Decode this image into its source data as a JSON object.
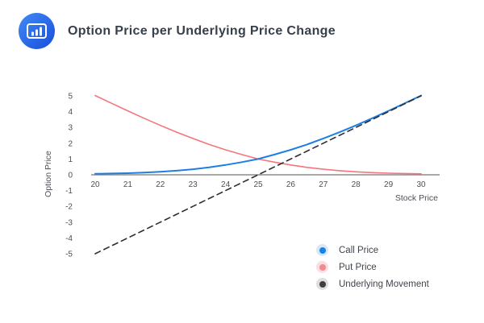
{
  "header": {
    "title": "Option Price per Underlying Price Change",
    "logo_icon": "bar-chart-icon"
  },
  "chart_data": {
    "type": "line",
    "title": "Option Price per Underlying Price Change",
    "xlabel": "Stock Price",
    "ylabel": "Option Price",
    "xlim": [
      20,
      30
    ],
    "ylim": [
      -5,
      5
    ],
    "grid": false,
    "legend_position": "bottom-right",
    "x_ticks": [
      20,
      21,
      22,
      23,
      24,
      25,
      26,
      27,
      28,
      29,
      30
    ],
    "y_ticks": [
      5,
      4,
      3,
      2,
      1,
      0,
      -1,
      -2,
      -3,
      -4,
      -5
    ],
    "x": [
      20,
      20.5,
      21,
      21.5,
      22,
      22.5,
      23,
      23.5,
      24,
      24.5,
      25,
      25.5,
      26,
      26.5,
      27,
      27.5,
      28,
      28.5,
      29,
      29.5,
      30
    ],
    "series": [
      {
        "name": "Call Price",
        "style": "solid",
        "color": "#1d7fe3",
        "legend_dot": "#1584ea",
        "legend_halo": "#dbe7f5",
        "values": [
          0.06,
          0.08,
          0.1,
          0.14,
          0.19,
          0.26,
          0.35,
          0.47,
          0.62,
          0.8,
          1.0,
          1.28,
          1.58,
          1.92,
          2.3,
          2.7,
          3.13,
          3.58,
          4.05,
          4.53,
          5.02
        ]
      },
      {
        "name": "Put Price",
        "style": "solid",
        "color": "#f4757d",
        "legend_dot": "#f18b90",
        "legend_halo": "#f8dfe1",
        "values": [
          5.02,
          4.53,
          4.05,
          3.58,
          3.13,
          2.7,
          2.3,
          1.92,
          1.58,
          1.28,
          1.0,
          0.8,
          0.62,
          0.47,
          0.35,
          0.26,
          0.19,
          0.14,
          0.1,
          0.08,
          0.06
        ]
      },
      {
        "name": "Underlying Movement",
        "style": "dashed",
        "color": "#2e2e2e",
        "legend_dot": "#3f3f3f",
        "legend_halo": "#dedede",
        "values": [
          -5,
          -4.5,
          -4,
          -3.5,
          -3,
          -2.5,
          -2,
          -1.5,
          -1,
          -0.5,
          0,
          0.5,
          1,
          1.5,
          2,
          2.5,
          3,
          3.5,
          4,
          4.5,
          5
        ]
      }
    ],
    "colors": {
      "axis": "#8b8b8b",
      "tick_text": "#4b5055",
      "title_text": "#373f4a",
      "legend_text": "#3f454d",
      "background": "#ffffff"
    }
  }
}
